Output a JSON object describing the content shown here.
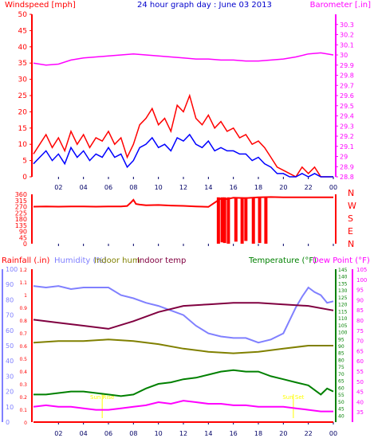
{
  "chart_data": [
    {
      "type": "line",
      "title": "24 hour graph day : June 03 2013",
      "left_axis": {
        "label": "Windspeed [mph]",
        "ylim": [
          0,
          50
        ],
        "ticks": [
          0,
          5,
          10,
          15,
          20,
          25,
          30,
          35,
          40,
          45,
          50
        ]
      },
      "right_axis": {
        "label": "Barometer [.in]",
        "ylim": [
          28.8,
          30.4
        ],
        "ticks": [
          "28.8",
          "28.9",
          "29",
          "29.1",
          "29.2",
          "29.3",
          "29.4",
          "29.5",
          "29.6",
          "29.7",
          "29.8",
          "29.9",
          "30",
          "30.1",
          "30.2",
          "30.3"
        ]
      },
      "x_ticks": [
        "02",
        "04",
        "06",
        "08",
        "10",
        "12",
        "14",
        "16",
        "18",
        "20",
        "22",
        "00"
      ],
      "xlim": [
        0,
        24
      ],
      "series": [
        {
          "axis": "left",
          "color": "#ff0000",
          "x": [
            0,
            0.5,
            1,
            1.5,
            2,
            2.5,
            3,
            3.5,
            4,
            4.5,
            5,
            5.5,
            6,
            6.5,
            7,
            7.5,
            8,
            8.5,
            9,
            9.5,
            10,
            10.5,
            11,
            11.5,
            12,
            12.5,
            13,
            13.5,
            14,
            14.5,
            15,
            15.5,
            16,
            16.5,
            17,
            17.5,
            18,
            18.5,
            19,
            19.5,
            20,
            20.5,
            21,
            21.5,
            22,
            22.5,
            23,
            23.5,
            24
          ],
          "y": [
            7,
            10,
            13,
            9,
            12,
            8,
            14,
            10,
            13,
            9,
            12,
            11,
            14,
            10,
            12,
            6,
            10,
            16,
            18,
            21,
            16,
            18,
            14,
            22,
            20,
            25,
            18,
            16,
            19,
            15,
            17,
            14,
            15,
            12,
            13,
            10,
            11,
            9,
            6,
            3,
            2,
            1,
            0,
            3,
            1,
            3,
            0,
            0,
            0
          ]
        },
        {
          "axis": "left",
          "color": "#0000ff",
          "x": [
            0,
            0.5,
            1,
            1.5,
            2,
            2.5,
            3,
            3.5,
            4,
            4.5,
            5,
            5.5,
            6,
            6.5,
            7,
            7.5,
            8,
            8.5,
            9,
            9.5,
            10,
            10.5,
            11,
            11.5,
            12,
            12.5,
            13,
            13.5,
            14,
            14.5,
            15,
            15.5,
            16,
            16.5,
            17,
            17.5,
            18,
            18.5,
            19,
            19.5,
            20,
            20.5,
            21,
            21.5,
            22,
            22.5,
            23,
            23.5,
            24
          ],
          "y": [
            4,
            6,
            8,
            5,
            7,
            4,
            9,
            6,
            8,
            5,
            7,
            6,
            9,
            6,
            7,
            3,
            5,
            9,
            10,
            12,
            9,
            10,
            8,
            12,
            11,
            13,
            10,
            9,
            11,
            8,
            9,
            8,
            8,
            7,
            7,
            5,
            6,
            4,
            3,
            1,
            1,
            0,
            0,
            1,
            0,
            1,
            0,
            0,
            0
          ]
        },
        {
          "axis": "right",
          "color": "#ff00ff",
          "x": [
            0,
            1,
            2,
            3,
            4,
            5,
            6,
            7,
            8,
            9,
            10,
            11,
            12,
            13,
            14,
            15,
            16,
            17,
            18,
            19,
            20,
            21,
            22,
            23,
            24
          ],
          "y": [
            29.92,
            29.9,
            29.91,
            29.95,
            29.97,
            29.98,
            29.99,
            30.0,
            30.01,
            30.0,
            29.99,
            29.98,
            29.97,
            29.96,
            29.96,
            29.95,
            29.95,
            29.94,
            29.94,
            29.95,
            29.96,
            29.98,
            30.01,
            30.02,
            30.0
          ]
        }
      ]
    },
    {
      "type": "line",
      "left_axis": {
        "ylim": [
          0,
          360
        ],
        "ticks": [
          "0",
          "45",
          "90",
          "135",
          "180",
          "225",
          "270",
          "315",
          "360"
        ]
      },
      "right_axis": {
        "labels": [
          "N",
          "W",
          "S",
          "E",
          "N"
        ]
      },
      "x_ticks": [
        "02",
        "04",
        "06",
        "08",
        "10",
        "12",
        "14",
        "16",
        "18",
        "20",
        "22",
        "00"
      ],
      "xlim": [
        0,
        24
      ],
      "series": [
        {
          "color": "#ff0000",
          "style": "line",
          "x": [
            0,
            1,
            2,
            3,
            4,
            5,
            6,
            7,
            7.5,
            7.8,
            8,
            8.2,
            8.5,
            9,
            10,
            11,
            12,
            13,
            14,
            15,
            15.5,
            16,
            17,
            18,
            19,
            20,
            21,
            22,
            23,
            24
          ],
          "y": [
            270,
            271,
            270,
            272,
            271,
            270,
            272,
            272,
            275,
            300,
            320,
            290,
            285,
            280,
            282,
            278,
            276,
            272,
            268,
            330,
            325,
            335,
            332,
            338,
            340,
            338,
            338,
            338,
            338,
            338
          ]
        },
        {
          "color": "#ff0000",
          "style": "spikes",
          "x": [
            14.8,
            15.1,
            15.3,
            15.6,
            16.2,
            16.7,
            17.0,
            17.6,
            18.1,
            18.6
          ],
          "y": [
            0,
            10,
            5,
            0,
            15,
            0,
            20,
            0,
            5,
            0
          ]
        }
      ]
    },
    {
      "type": "line",
      "axis_labels": [
        {
          "text": "Rainfall (.in)",
          "color": "#ff0000"
        },
        {
          "text": "Humidity (%)",
          "color": "#8080ff"
        },
        {
          "text": "Indoor hum",
          "color": "#808000"
        },
        {
          "text": "Indoor temp",
          "color": "#800040"
        },
        {
          "text": "Temperature (°F)",
          "color": "#008000"
        },
        {
          "text": "Dew Point (°F)",
          "color": "#ff00ff"
        }
      ],
      "axes": {
        "rain": {
          "ylim": [
            0,
            1.2
          ],
          "ticks": [
            "0",
            "0.1",
            "0.2",
            "0.3",
            "0.4",
            "0.5",
            "0.6",
            "0.7",
            "0.8",
            "0.9",
            "1",
            "1.1",
            "1.2"
          ]
        },
        "humidity": {
          "ylim": [
            0,
            100
          ],
          "ticks": [
            "0",
            "10",
            "20",
            "30",
            "40",
            "50",
            "60",
            "70",
            "80",
            "90",
            "100"
          ]
        },
        "temperature": {
          "ylim": [
            35,
            145
          ],
          "ticks": [
            "40",
            "45",
            "50",
            "55",
            "60",
            "65",
            "70",
            "75",
            "80",
            "85",
            "90",
            "95",
            "100",
            "105",
            "110",
            "115",
            "120",
            "125",
            "130",
            "135",
            "140",
            "145"
          ]
        },
        "dewpoint": {
          "ylim": [
            30,
            105
          ],
          "ticks": [
            "35",
            "40",
            "45",
            "50",
            "55",
            "60",
            "65",
            "70",
            "75",
            "80",
            "85",
            "90",
            "95",
            "100",
            "105"
          ]
        }
      },
      "x_ticks": [
        "02",
        "04",
        "06",
        "08",
        "10",
        "12",
        "14",
        "16",
        "18",
        "20",
        "22",
        "00"
      ],
      "xlim": [
        0,
        24
      ],
      "annotations": [
        {
          "text": "Sun Rise",
          "x": 5.5,
          "color": "#ffff00"
        },
        {
          "text": "Sun Set",
          "x": 20.8,
          "color": "#ffff00"
        }
      ],
      "series": [
        {
          "name": "Humidity",
          "axis": "humidity",
          "color": "#8080ff",
          "x": [
            0,
            1,
            2,
            3,
            4,
            5,
            6,
            7,
            8,
            9,
            10,
            11,
            12,
            13,
            14,
            15,
            16,
            17,
            18,
            19,
            20,
            21,
            21.5,
            22,
            22.5,
            23,
            23.5,
            24
          ],
          "y": [
            89,
            88,
            89,
            87,
            88,
            88,
            88,
            83,
            81,
            78,
            76,
            73,
            70,
            63,
            58,
            56,
            55,
            55,
            52,
            54,
            58,
            75,
            82,
            88,
            85,
            83,
            78,
            79
          ]
        },
        {
          "name": "Indoor temp",
          "axis": "humidity",
          "color": "#800040",
          "x": [
            0,
            2,
            4,
            6,
            8,
            10,
            12,
            14,
            16,
            18,
            20,
            22,
            24
          ],
          "y": [
            67,
            65,
            63,
            61,
            66,
            72,
            76,
            77,
            78,
            78,
            77,
            76,
            73
          ]
        },
        {
          "name": "Indoor hum",
          "axis": "humidity",
          "color": "#808000",
          "x": [
            0,
            2,
            4,
            6,
            8,
            10,
            12,
            14,
            16,
            18,
            20,
            22,
            24
          ],
          "y": [
            52,
            53,
            53,
            54,
            53,
            51,
            48,
            46,
            45,
            46,
            48,
            50,
            50
          ]
        },
        {
          "name": "Temperature",
          "axis": "humidity",
          "color": "#008000",
          "x": [
            0,
            1,
            2,
            3,
            4,
            5,
            6,
            7,
            8,
            9,
            10,
            11,
            12,
            13,
            14,
            15,
            16,
            17,
            18,
            19,
            20,
            21,
            22,
            23,
            23.5,
            24
          ],
          "y": [
            18,
            18,
            19,
            20,
            20,
            19,
            18,
            17,
            18,
            22,
            25,
            26,
            28,
            29,
            31,
            33,
            34,
            33,
            33,
            30,
            28,
            26,
            24,
            18,
            22,
            20
          ]
        },
        {
          "name": "Dew Point",
          "axis": "humidity",
          "color": "#ff00ff",
          "x": [
            0,
            1,
            2,
            3,
            4,
            5,
            6,
            7,
            8,
            9,
            10,
            11,
            12,
            13,
            14,
            15,
            16,
            17,
            18,
            19,
            20,
            21,
            22,
            23,
            24
          ],
          "y": [
            10,
            11,
            10,
            10,
            9,
            8,
            8,
            9,
            10,
            11,
            13,
            12,
            14,
            13,
            12,
            12,
            11,
            11,
            10,
            10,
            10,
            9,
            8,
            7,
            7
          ]
        },
        {
          "name": "Rainfall",
          "axis": "humidity",
          "color": "#ff0000",
          "x": [
            0,
            24
          ],
          "y": [
            0,
            0
          ]
        }
      ]
    }
  ]
}
